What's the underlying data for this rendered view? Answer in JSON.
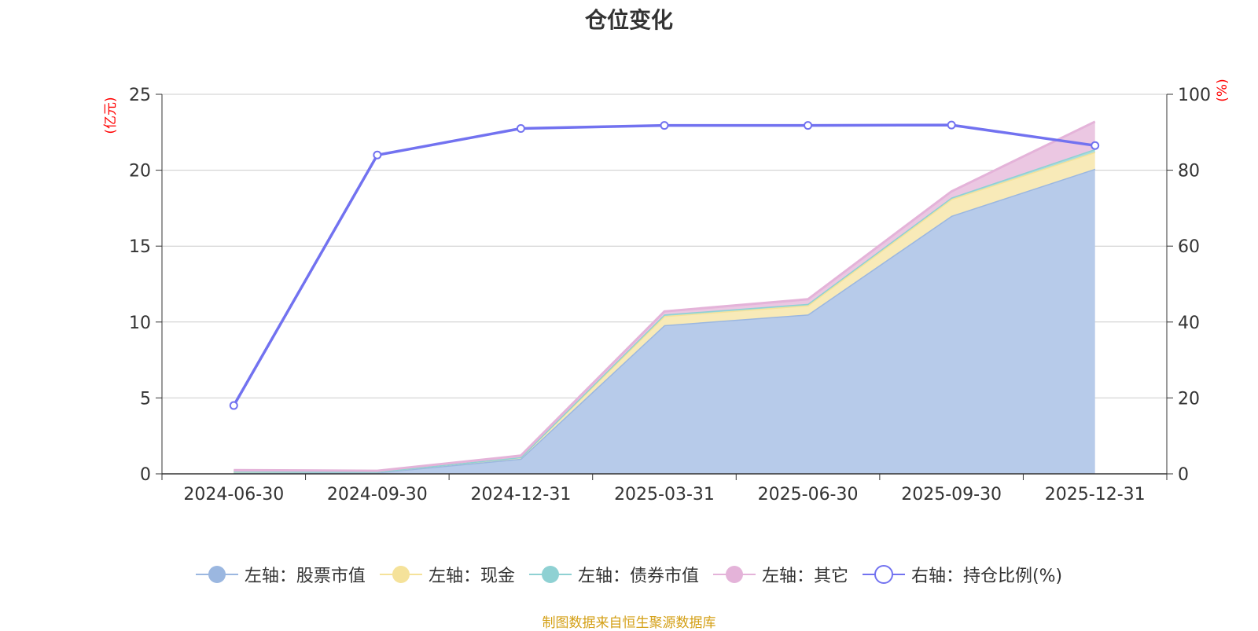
{
  "chart_data": {
    "type": "area",
    "title": "仓位变化",
    "ylabel_left": "(亿元)",
    "ylabel_right": "(%)",
    "categories": [
      "2024-06-30",
      "2024-09-30",
      "2024-12-31",
      "2025-03-31",
      "2025-06-30",
      "2025-09-30",
      "2025-12-31"
    ],
    "ylim_left": [
      0,
      25
    ],
    "yticks_left": [
      "0",
      "5",
      "10",
      "15",
      "20",
      "25"
    ],
    "ylim_right": [
      0,
      100
    ],
    "yticks_right": [
      "0",
      "20",
      "40",
      "60",
      "80",
      "100"
    ],
    "stacked": true,
    "grid": true,
    "legend_position": "bottom",
    "series": [
      {
        "name": "左轴：股票市值",
        "axis": "left",
        "kind": "area",
        "color": "#9bb7e0",
        "fill": "#b7cbea",
        "values": [
          0.05,
          0.1,
          1.0,
          9.8,
          10.5,
          17.0,
          20.1
        ]
      },
      {
        "name": "左轴：现金",
        "axis": "left",
        "kind": "area",
        "color": "#f5e29a",
        "fill": "#f8eab8",
        "values": [
          0.1,
          0.05,
          0.1,
          0.6,
          0.6,
          1.1,
          1.1
        ]
      },
      {
        "name": "左轴：债券市值",
        "axis": "left",
        "kind": "area",
        "color": "#8fd1d3",
        "fill": "#a8dcdd",
        "values": [
          0.0,
          0.0,
          0.0,
          0.1,
          0.1,
          0.1,
          0.2
        ]
      },
      {
        "name": "左轴：其它",
        "axis": "left",
        "kind": "area",
        "color": "#e4b3d9",
        "fill": "#ebc7e2",
        "values": [
          0.1,
          0.05,
          0.1,
          0.2,
          0.3,
          0.4,
          1.8
        ]
      },
      {
        "name": "右轴：持仓比例(%)",
        "axis": "right",
        "kind": "line",
        "color": "#7272f0",
        "values": [
          18.0,
          84.0,
          91.0,
          91.8,
          91.8,
          91.9,
          86.5
        ]
      }
    ]
  },
  "source_note": "制图数据来自恒生聚源数据库"
}
